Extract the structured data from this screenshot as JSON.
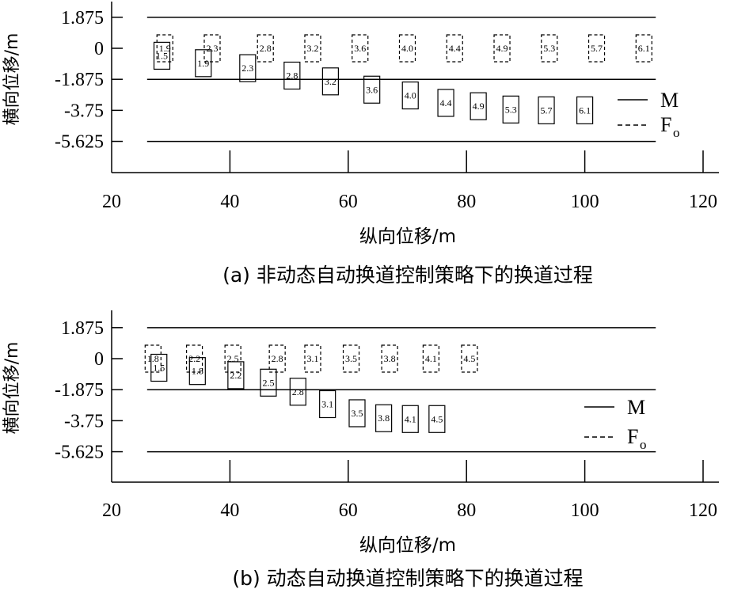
{
  "chart_data": [
    {
      "type": "scatter",
      "subtitle": "(a) 非动态自动换道控制策略下的换道过程",
      "xlabel": "纵向位移/m",
      "ylabel": "横向位移/m",
      "xlim": [
        20,
        120
      ],
      "ylim": [
        -7.2,
        2.4
      ],
      "x_ticks": [
        "20",
        "40",
        "60",
        "80",
        "100",
        "120"
      ],
      "y_ticks": [
        "1.875",
        "0",
        "-1.875",
        "-3.75",
        "-5.625"
      ],
      "y_tick_values": [
        1.875,
        0,
        -1.875,
        -3.75,
        -5.625
      ],
      "lane_lines": [
        1.875,
        -1.875,
        -5.625
      ],
      "lane_x_range": [
        26,
        112
      ],
      "legend_position": "right",
      "legend": [
        "M",
        "F",
        "o"
      ],
      "series": [
        {
          "name": "M",
          "style": "solid-box",
          "points": [
            {
              "x": 28.5,
              "y": -0.45,
              "label": "1.5"
            },
            {
              "x": 35.5,
              "y": -0.9,
              "label": "1.9"
            },
            {
              "x": 43.0,
              "y": -1.2,
              "label": "2.3"
            },
            {
              "x": 50.5,
              "y": -1.65,
              "label": "2.8"
            },
            {
              "x": 57.0,
              "y": -2.0,
              "label": "3.2"
            },
            {
              "x": 64.0,
              "y": -2.5,
              "label": "3.6"
            },
            {
              "x": 70.5,
              "y": -2.85,
              "label": "4.0"
            },
            {
              "x": 76.5,
              "y": -3.3,
              "label": "4.4"
            },
            {
              "x": 82.0,
              "y": -3.5,
              "label": "4.9"
            },
            {
              "x": 87.5,
              "y": -3.7,
              "label": "5.3"
            },
            {
              "x": 93.5,
              "y": -3.75,
              "label": "5.7"
            },
            {
              "x": 100.0,
              "y": -3.75,
              "label": "6.1"
            }
          ]
        },
        {
          "name": "Fo",
          "style": "dashed-box",
          "points": [
            {
              "x": 29.0,
              "y": 0.0,
              "label": "1.9"
            },
            {
              "x": 37.0,
              "y": 0.0,
              "label": "2.3"
            },
            {
              "x": 46.0,
              "y": 0.0,
              "label": "2.8"
            },
            {
              "x": 54.0,
              "y": 0.0,
              "label": "3.2"
            },
            {
              "x": 62.0,
              "y": 0.0,
              "label": "3.6"
            },
            {
              "x": 70.0,
              "y": 0.0,
              "label": "4.0"
            },
            {
              "x": 78.0,
              "y": 0.0,
              "label": "4.4"
            },
            {
              "x": 86.0,
              "y": 0.0,
              "label": "4.9"
            },
            {
              "x": 94.0,
              "y": 0.0,
              "label": "5.3"
            },
            {
              "x": 102.0,
              "y": 0.0,
              "label": "5.7"
            },
            {
              "x": 110.0,
              "y": 0.0,
              "label": "6.1"
            }
          ]
        }
      ]
    },
    {
      "type": "scatter",
      "subtitle": "(b) 动态自动换道控制策略下的换道过程",
      "xlabel": "纵向位移/m",
      "ylabel": "横向位移/m",
      "xlim": [
        20,
        120
      ],
      "ylim": [
        -7.2,
        2.4
      ],
      "x_ticks": [
        "20",
        "40",
        "60",
        "80",
        "100",
        "120"
      ],
      "y_ticks": [
        "1.875",
        "0",
        "-1.875",
        "-3.75",
        "-5.625"
      ],
      "y_tick_values": [
        1.875,
        0,
        -1.875,
        -3.75,
        -5.625
      ],
      "lane_lines": [
        1.875,
        -1.875,
        -5.625
      ],
      "lane_x_range": [
        26,
        112
      ],
      "legend_position": "right",
      "legend": [
        "M",
        "F",
        "o"
      ],
      "series": [
        {
          "name": "M",
          "style": "solid-box",
          "points": [
            {
              "x": 28.0,
              "y": -0.55,
              "label": "1.5"
            },
            {
              "x": 34.5,
              "y": -0.75,
              "label": "1.8"
            },
            {
              "x": 41.0,
              "y": -1.0,
              "label": "2.2"
            },
            {
              "x": 46.5,
              "y": -1.45,
              "label": "2.5"
            },
            {
              "x": 51.5,
              "y": -2.0,
              "label": "2.8"
            },
            {
              "x": 56.5,
              "y": -2.75,
              "label": "3.1"
            },
            {
              "x": 61.5,
              "y": -3.3,
              "label": "3.5"
            },
            {
              "x": 66.0,
              "y": -3.6,
              "label": "3.8"
            },
            {
              "x": 70.5,
              "y": -3.65,
              "label": "4.1"
            },
            {
              "x": 75.0,
              "y": -3.65,
              "label": "4.5"
            }
          ]
        },
        {
          "name": "Fo",
          "style": "dashed-box",
          "points": [
            {
              "x": 27.0,
              "y": 0.0,
              "label": "1.8"
            },
            {
              "x": 34.0,
              "y": 0.0,
              "label": "2.2"
            },
            {
              "x": 40.5,
              "y": 0.0,
              "label": "2.5"
            },
            {
              "x": 48.0,
              "y": 0.0,
              "label": "2.8"
            },
            {
              "x": 54.0,
              "y": 0.0,
              "label": "3.1"
            },
            {
              "x": 60.5,
              "y": 0.0,
              "label": "3.5"
            },
            {
              "x": 67.0,
              "y": 0.0,
              "label": "3.8"
            },
            {
              "x": 74.0,
              "y": 0.0,
              "label": "4.1"
            },
            {
              "x": 80.5,
              "y": 0.0,
              "label": "4.5"
            }
          ]
        }
      ]
    }
  ]
}
